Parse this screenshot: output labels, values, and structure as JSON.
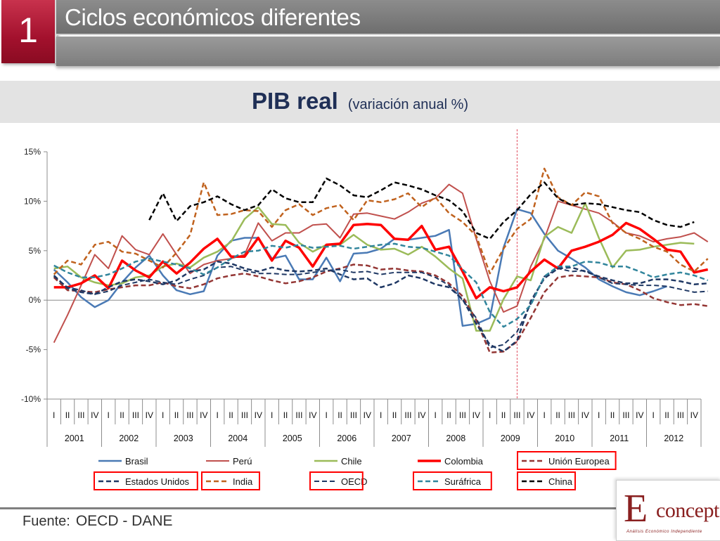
{
  "slide": {
    "number": "1",
    "title": "Ciclos económicos diferentes"
  },
  "footer": {
    "label": "Fuente:",
    "value": "OECD - DANE"
  },
  "logo": {
    "letter": "E",
    "text": "concept",
    "tagline": "Análisis Económico Independiente"
  },
  "chart_data": {
    "type": "line",
    "title": "PIB real",
    "subtitle": "(variación anual %)",
    "xlabel": "",
    "ylabel": "",
    "ylim": [
      -10,
      15
    ],
    "yticks": [
      -10,
      -5,
      0,
      5,
      10,
      15
    ],
    "ytick_labels": [
      "-10%",
      "-5%",
      "0%",
      "5%",
      "10%",
      "15%"
    ],
    "grid": false,
    "legend_position": "bottom",
    "quarter_labels": [
      "I",
      "II",
      "III",
      "IV"
    ],
    "years": [
      "2001",
      "2002",
      "2003",
      "2004",
      "2005",
      "2006",
      "2007",
      "2008",
      "2009",
      "2010",
      "2011",
      "2012"
    ],
    "reference_line": {
      "year": "2009",
      "quarter": "III",
      "color": "#e05060",
      "style": "dotted"
    },
    "highlighted_legend": [
      "Unión Europea",
      "Estados Unidos",
      "India",
      "OECD",
      "Suráfrica",
      "China"
    ],
    "series": [
      {
        "name": "Brasil",
        "color": "#4a7ab5",
        "dash": "solid",
        "width": 2.5,
        "start": 0,
        "values": [
          3.1,
          1.8,
          0.3,
          -0.7,
          0.0,
          1.8,
          3.3,
          4.5,
          2.5,
          1.0,
          0.6,
          0.9,
          4.5,
          6.0,
          6.3,
          6.3,
          4.2,
          4.5,
          2.1,
          2.1,
          4.3,
          1.9,
          4.7,
          4.8,
          5.2,
          6.2,
          6.1,
          6.3,
          6.5,
          7.1,
          -2.6,
          -2.4,
          -1.8,
          5.3,
          9.2,
          8.8,
          6.7,
          5.0,
          4.2,
          3.3,
          2.1,
          1.4,
          0.8,
          0.5,
          0.9,
          1.4
        ]
      },
      {
        "name": "Perú",
        "color": "#c0504d",
        "dash": "solid",
        "width": 2,
        "start": 0,
        "values": [
          -4.3,
          -1.5,
          1.5,
          4.6,
          3.2,
          6.5,
          5.1,
          4.6,
          6.7,
          4.6,
          2.7,
          3.6,
          4.0,
          4.2,
          4.6,
          7.8,
          6.0,
          6.8,
          6.8,
          7.6,
          7.7,
          6.3,
          8.7,
          8.8,
          8.5,
          8.2,
          8.9,
          9.8,
          10.3,
          11.7,
          10.8,
          6.2,
          1.9,
          -1.2,
          -0.6,
          3.4,
          6.2,
          10.0,
          9.6,
          9.2,
          8.8,
          7.9,
          6.8,
          6.5,
          5.9,
          6.2,
          6.4,
          6.8,
          5.9
        ]
      },
      {
        "name": "Chile",
        "color": "#9bbb59",
        "dash": "solid",
        "width": 2.5,
        "start": 0,
        "values": [
          3.2,
          3.4,
          2.3,
          1.8,
          1.5,
          1.7,
          2.3,
          2.5,
          3.4,
          3.7,
          3.3,
          4.3,
          4.9,
          5.9,
          8.2,
          9.4,
          7.7,
          7.6,
          5.8,
          4.9,
          5.6,
          5.6,
          6.6,
          5.6,
          5.1,
          5.2,
          4.6,
          5.4,
          4.4,
          3.2,
          2.2,
          -3.1,
          -3.1,
          0.1,
          2.4,
          2.0,
          6.4,
          7.4,
          6.8,
          9.8,
          6.3,
          3.3,
          5.0,
          5.1,
          5.4,
          5.6,
          5.8,
          5.7
        ]
      },
      {
        "name": "Colombia",
        "color": "#ff0000",
        "dash": "solid",
        "width": 3.5,
        "start": 0,
        "values": [
          1.3,
          1.3,
          1.7,
          2.5,
          1.2,
          4.0,
          3.0,
          2.3,
          3.9,
          2.7,
          3.8,
          5.2,
          6.2,
          4.4,
          4.4,
          6.3,
          4.0,
          6.0,
          5.3,
          3.4,
          5.6,
          5.7,
          7.6,
          7.7,
          7.6,
          6.2,
          6.1,
          7.5,
          5.1,
          5.4,
          2.9,
          0.2,
          1.3,
          0.9,
          1.3,
          2.9,
          4.1,
          3.2,
          5.0,
          5.4,
          5.9,
          6.6,
          7.8,
          7.2,
          6.2,
          5.1,
          4.9,
          2.8,
          3.1
        ]
      },
      {
        "name": "Unión Europea",
        "color": "#943634",
        "dash": "dashed",
        "width": 2.5,
        "start": 0,
        "values": [
          2.3,
          1.0,
          0.9,
          0.8,
          1.1,
          1.3,
          1.5,
          1.5,
          1.8,
          1.4,
          1.2,
          1.6,
          2.2,
          2.5,
          2.7,
          2.4,
          2.0,
          1.7,
          1.9,
          2.3,
          2.9,
          3.2,
          3.6,
          3.5,
          3.1,
          3.2,
          3.0,
          2.9,
          2.5,
          1.7,
          0.4,
          -2.0,
          -5.3,
          -5.2,
          -4.2,
          -1.8,
          0.8,
          2.3,
          2.5,
          2.4,
          2.3,
          1.8,
          1.6,
          1.0,
          0.2,
          -0.2,
          -0.5,
          -0.4,
          -0.6
        ]
      },
      {
        "name": "Estados Unidos",
        "color": "#1f3864",
        "dash": "dashed",
        "width": 2.5,
        "start": 0,
        "values": [
          2.5,
          1.2,
          0.8,
          0.6,
          1.3,
          1.9,
          2.1,
          1.9,
          1.6,
          2.0,
          2.9,
          3.1,
          3.9,
          3.7,
          3.2,
          2.9,
          3.3,
          3.0,
          2.9,
          3.0,
          3.2,
          2.6,
          2.1,
          2.2,
          1.3,
          1.7,
          2.5,
          2.2,
          1.6,
          1.3,
          0.1,
          -2.4,
          -4.5,
          -5.2,
          -4.1,
          -0.1,
          2.2,
          3.2,
          3.3,
          2.9,
          2.4,
          2.0,
          1.7,
          1.7,
          2.1,
          2.1,
          1.9,
          1.6,
          1.7
        ]
      },
      {
        "name": "India",
        "color": "#c0621e",
        "dash": "dashed",
        "width": 2.5,
        "start": 0,
        "values": [
          2.6,
          4.0,
          3.6,
          5.6,
          5.9,
          4.9,
          4.7,
          4.0,
          3.3,
          4.8,
          6.6,
          11.9,
          8.6,
          8.7,
          9.1,
          9.0,
          7.4,
          9.1,
          9.7,
          8.6,
          9.3,
          9.6,
          8.1,
          10.1,
          9.9,
          10.2,
          10.8,
          9.4,
          10.4,
          8.8,
          7.9,
          6.5,
          2.7,
          5.2,
          7.2,
          8.2,
          13.3,
          10.4,
          9.6,
          10.9,
          10.5,
          7.8,
          6.8,
          6.2,
          5.4,
          4.9,
          3.6,
          2.9,
          4.2
        ]
      },
      {
        "name": "OECD",
        "color": "#1f3864",
        "dash": "dashed",
        "width": 2,
        "start": 0,
        "values": [
          2.4,
          1.3,
          1.0,
          0.6,
          0.9,
          1.5,
          1.8,
          2.1,
          1.8,
          1.6,
          2.1,
          2.5,
          3.3,
          3.4,
          3.0,
          2.7,
          2.7,
          2.6,
          2.6,
          2.8,
          3.0,
          3.1,
          2.8,
          2.9,
          2.6,
          2.8,
          2.8,
          2.8,
          2.3,
          1.5,
          0.0,
          -1.8,
          -4.8,
          -4.5,
          -3.2,
          -0.4,
          2.4,
          3.2,
          2.9,
          3.0,
          2.3,
          1.7,
          1.6,
          1.5,
          1.5,
          1.4,
          1.1,
          0.8,
          0.9
        ]
      },
      {
        "name": "Suráfrica",
        "color": "#31859c",
        "dash": "dashed",
        "width": 2.5,
        "start": 0,
        "values": [
          3.5,
          2.8,
          2.3,
          2.3,
          2.6,
          3.2,
          3.9,
          4.2,
          3.9,
          3.6,
          3.2,
          2.6,
          3.3,
          4.2,
          4.9,
          5.0,
          5.5,
          5.3,
          5.6,
          5.3,
          5.4,
          5.5,
          5.2,
          5.4,
          5.6,
          5.7,
          5.4,
          5.3,
          4.9,
          4.5,
          3.1,
          1.8,
          -1.2,
          -2.7,
          -1.9,
          -0.5,
          2.4,
          3.4,
          3.4,
          3.9,
          3.8,
          3.4,
          3.4,
          2.9,
          2.3,
          2.6,
          2.8,
          2.5,
          2.0
        ]
      },
      {
        "name": "China",
        "color": "#000000",
        "dash": "dashed",
        "width": 2.5,
        "start": 7,
        "values": [
          8.1,
          10.8,
          8.0,
          9.5,
          9.9,
          10.5,
          9.7,
          9.1,
          9.6,
          11.2,
          10.3,
          9.9,
          9.9,
          12.3,
          11.6,
          10.6,
          10.4,
          11.1,
          11.9,
          11.6,
          11.2,
          10.6,
          10.1,
          9.0,
          6.8,
          6.2,
          7.9,
          9.1,
          10.7,
          11.9,
          10.3,
          9.6,
          9.8,
          9.7,
          9.4,
          9.1,
          8.9,
          8.1,
          7.6,
          7.4,
          7.9
        ]
      }
    ]
  }
}
